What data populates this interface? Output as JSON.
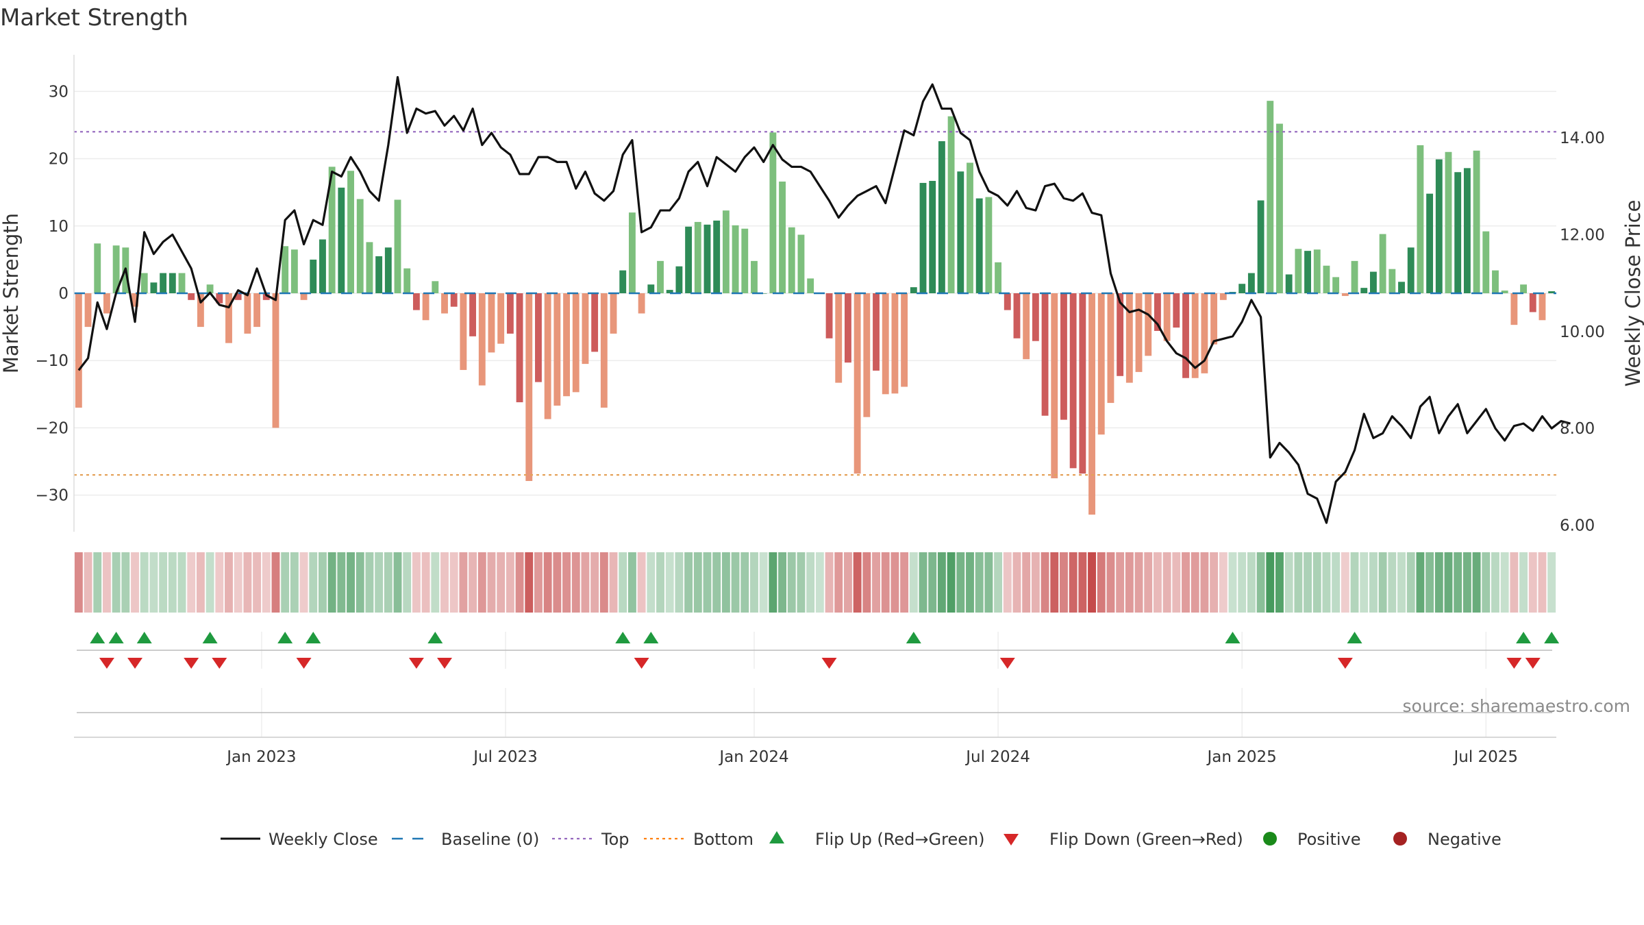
{
  "chart_data": {
    "type": "bar",
    "title": "Market Strength",
    "ylabel_left": "Market Strength",
    "ylabel_right": "Weekly Close Price",
    "ylim_left": [
      -35,
      35
    ],
    "ylim_right": [
      6.0,
      15.5
    ],
    "left_ticks": [
      {
        "v": 30,
        "label": "30"
      },
      {
        "v": 20,
        "label": "20"
      },
      {
        "v": 10,
        "label": "10"
      },
      {
        "v": 0,
        "label": "0"
      },
      {
        "v": -10,
        "label": "−10"
      },
      {
        "v": -20,
        "label": "−20"
      },
      {
        "v": -30,
        "label": "−30"
      }
    ],
    "right_ticks": [
      {
        "v": 14,
        "label": "14.00"
      },
      {
        "v": 12,
        "label": "12.00"
      },
      {
        "v": 10,
        "label": "10.00"
      },
      {
        "v": 8,
        "label": "8.00"
      },
      {
        "v": 6,
        "label": "6.00"
      }
    ],
    "x_ticks": [
      {
        "week": 20,
        "label": "Jan 2023"
      },
      {
        "week": 46,
        "label": "Jul 2023"
      },
      {
        "week": 72.5,
        "label": "Jan 2024"
      },
      {
        "week": 98.5,
        "label": "Jul 2024"
      },
      {
        "week": 124.5,
        "label": "Jan 2025"
      },
      {
        "week": 150.5,
        "label": "Jul 2025"
      }
    ],
    "top_level": 24,
    "bottom_level": -27,
    "strength": [
      -17,
      -5,
      7.4,
      -3,
      7.1,
      6.8,
      -2,
      3,
      1.6,
      3,
      3,
      3,
      -1,
      -5,
      1.3,
      -1.5,
      -7.4,
      -1,
      -6,
      -5,
      -1,
      -20,
      7,
      6.5,
      -1,
      5,
      8,
      18.8,
      15.7,
      18.2,
      14,
      7.6,
      5.5,
      6.8,
      13.9,
      3.7,
      -2.5,
      -4,
      1.8,
      -3,
      -2,
      -11.4,
      -6.4,
      -13.7,
      -8.8,
      -7.5,
      -6,
      -16.2,
      -27.9,
      -13.2,
      -18.7,
      -16.7,
      -15.3,
      -14.7,
      -10.5,
      -8.7,
      -17,
      -6,
      3.4,
      12,
      -3,
      1.3,
      4.8,
      0.5,
      4,
      9.9,
      10.6,
      10.2,
      10.8,
      12.3,
      10.1,
      9.6,
      4.8,
      0,
      23.9,
      16.6,
      9.8,
      8.7,
      2.2,
      0,
      -6.7,
      -13.3,
      -10.3,
      -26.8,
      -18.4,
      -11.5,
      -15,
      -14.9,
      -13.9,
      0.9,
      16.4,
      16.7,
      22.6,
      26.3,
      18.1,
      19.4,
      14.1,
      14.3,
      4.6,
      -2.5,
      -6.7,
      -9.8,
      -7.1,
      -18.2,
      -27.5,
      -18.8,
      -26,
      -26.8,
      -32.9,
      -21,
      -16.3,
      -12.3,
      -13.3,
      -11.7,
      -9.3,
      -5.6,
      -7.1,
      -5.1,
      -12.6,
      -12.6,
      -11.9,
      -7.6,
      -1,
      0.2,
      1.4,
      3,
      13.8,
      28.6,
      25.2,
      2.8,
      6.6,
      6.3,
      6.5,
      4.1,
      2.4,
      -0.4,
      4.8,
      0.8,
      3.2,
      8.8,
      3.6,
      1.7,
      6.8,
      22,
      14.8,
      19.9,
      21,
      18,
      18.6,
      21.2,
      9.2,
      3.4,
      0.4,
      -4.7,
      1.3,
      -2.8,
      -4,
      0.3
    ],
    "weekly_close": [
      9.2,
      9.45,
      10.6,
      10.05,
      10.8,
      11.3,
      10.2,
      12.05,
      11.6,
      11.85,
      12,
      11.65,
      11.3,
      10.6,
      10.8,
      10.55,
      10.5,
      10.85,
      10.75,
      11.3,
      10.75,
      10.65,
      12.3,
      12.5,
      11.8,
      12.3,
      12.2,
      13.3,
      13.2,
      13.6,
      13.3,
      12.9,
      12.7,
      13.85,
      15.25,
      14.1,
      14.6,
      14.5,
      14.55,
      14.25,
      14.45,
      14.15,
      14.6,
      13.85,
      14.1,
      13.8,
      13.65,
      13.25,
      13.25,
      13.6,
      13.6,
      13.5,
      13.5,
      12.95,
      13.3,
      12.85,
      12.7,
      12.9,
      13.65,
      13.95,
      12.05,
      12.15,
      12.5,
      12.5,
      12.75,
      13.3,
      13.5,
      13.0,
      13.6,
      13.45,
      13.3,
      13.6,
      13.8,
      13.5,
      13.85,
      13.55,
      13.4,
      13.4,
      13.3,
      13.0,
      12.7,
      12.35,
      12.6,
      12.8,
      12.9,
      13.0,
      12.65,
      13.4,
      14.15,
      14.05,
      14.75,
      15.1,
      14.6,
      14.6,
      14.1,
      13.95,
      13.3,
      12.9,
      12.8,
      12.6,
      12.9,
      12.55,
      12.5,
      13.0,
      13.05,
      12.75,
      12.7,
      12.85,
      12.45,
      12.4,
      11.2,
      10.6,
      10.4,
      10.45,
      10.35,
      10.15,
      9.8,
      9.55,
      9.45,
      9.25,
      9.4,
      9.8,
      9.85,
      9.9,
      10.2,
      10.65,
      10.3,
      7.4,
      7.7,
      7.5,
      7.25,
      6.65,
      6.55,
      6.05,
      6.9,
      7.1,
      7.55,
      8.3,
      7.8,
      7.9,
      8.25,
      8.05,
      7.8,
      8.45,
      8.65,
      7.9,
      8.25,
      8.5,
      7.9,
      8.15,
      8.4,
      8.0,
      7.75,
      8.05,
      8.1,
      7.95,
      8.25,
      8.0,
      8.15,
      8.1
    ]
  },
  "legend": [
    {
      "label": "Weekly Close",
      "kind": "line",
      "color": "#111111"
    },
    {
      "label": "Baseline (0)",
      "kind": "dash",
      "color": "#1f77b4"
    },
    {
      "label": "Top",
      "kind": "dot",
      "color": "#9467bd"
    },
    {
      "label": "Bottom",
      "kind": "dot",
      "color": "#ff7f0e"
    },
    {
      "label": "Flip Up (Red→Green)",
      "kind": "tri-up",
      "color": "#2ca02c"
    },
    {
      "label": "Flip Down (Green→Red)",
      "kind": "tri-down",
      "color": "#d62728"
    },
    {
      "label": "Positive",
      "kind": "circle",
      "color": "#1a8a1a"
    },
    {
      "label": "Negative",
      "kind": "circle",
      "color": "#a52222"
    }
  ],
  "source": "source: sharemaestro.com"
}
